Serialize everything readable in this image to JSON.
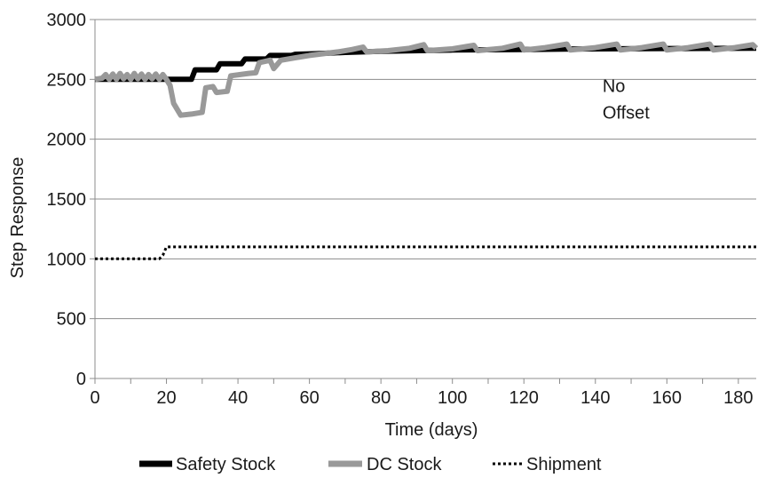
{
  "chart_data": {
    "type": "line",
    "title": "",
    "xlabel": "Time (days)",
    "ylabel": "Step Response",
    "xlim": [
      0,
      185
    ],
    "ylim": [
      0,
      3000
    ],
    "x_ticks": [
      0,
      20,
      40,
      60,
      80,
      100,
      120,
      140,
      160,
      180
    ],
    "y_ticks": [
      0,
      500,
      1000,
      1500,
      2000,
      2500,
      3000
    ],
    "grid": "horizontal",
    "legend_position": "bottom",
    "annotations": [
      {
        "text_lines": [
          "No",
          "Offset"
        ],
        "x": 142,
        "y": 2500
      }
    ],
    "series": [
      {
        "name": "Safety Stock",
        "color": "#000000",
        "style": "solid-thick",
        "points": [
          [
            0,
            2500
          ],
          [
            20,
            2500
          ],
          [
            22,
            2500
          ],
          [
            27,
            2500
          ],
          [
            28,
            2580
          ],
          [
            34,
            2580
          ],
          [
            35,
            2630
          ],
          [
            41,
            2630
          ],
          [
            42,
            2670
          ],
          [
            48,
            2670
          ],
          [
            49,
            2700
          ],
          [
            55,
            2700
          ],
          [
            56,
            2710
          ],
          [
            62,
            2715
          ],
          [
            70,
            2725
          ],
          [
            80,
            2735
          ],
          [
            100,
            2745
          ],
          [
            120,
            2750
          ],
          [
            140,
            2755
          ],
          [
            160,
            2758
          ],
          [
            185,
            2760
          ]
        ]
      },
      {
        "name": "DC Stock",
        "color": "#999999",
        "style": "solid-thick",
        "points": [
          [
            0,
            2500
          ],
          [
            2,
            2510
          ],
          [
            3,
            2540
          ],
          [
            4,
            2500
          ],
          [
            5,
            2545
          ],
          [
            6,
            2500
          ],
          [
            7,
            2550
          ],
          [
            8,
            2505
          ],
          [
            9,
            2540
          ],
          [
            10,
            2500
          ],
          [
            11,
            2550
          ],
          [
            12,
            2505
          ],
          [
            13,
            2545
          ],
          [
            14,
            2500
          ],
          [
            15,
            2540
          ],
          [
            16,
            2505
          ],
          [
            17,
            2545
          ],
          [
            18,
            2500
          ],
          [
            19,
            2540
          ],
          [
            20,
            2500
          ],
          [
            21,
            2450
          ],
          [
            22,
            2300
          ],
          [
            24,
            2200
          ],
          [
            27,
            2210
          ],
          [
            30,
            2225
          ],
          [
            31,
            2430
          ],
          [
            33,
            2440
          ],
          [
            34,
            2390
          ],
          [
            37,
            2400
          ],
          [
            38,
            2530
          ],
          [
            43,
            2550
          ],
          [
            45,
            2555
          ],
          [
            46,
            2640
          ],
          [
            49,
            2660
          ],
          [
            50,
            2590
          ],
          [
            52,
            2660
          ],
          [
            56,
            2680
          ],
          [
            60,
            2700
          ],
          [
            64,
            2715
          ],
          [
            68,
            2730
          ],
          [
            72,
            2750
          ],
          [
            75,
            2770
          ],
          [
            76,
            2730
          ],
          [
            82,
            2740
          ],
          [
            88,
            2760
          ],
          [
            92,
            2790
          ],
          [
            93,
            2740
          ],
          [
            100,
            2755
          ],
          [
            106,
            2785
          ],
          [
            107,
            2740
          ],
          [
            114,
            2760
          ],
          [
            119,
            2795
          ],
          [
            120,
            2745
          ],
          [
            126,
            2765
          ],
          [
            132,
            2795
          ],
          [
            133,
            2745
          ],
          [
            140,
            2765
          ],
          [
            146,
            2795
          ],
          [
            147,
            2745
          ],
          [
            153,
            2765
          ],
          [
            159,
            2795
          ],
          [
            160,
            2745
          ],
          [
            166,
            2765
          ],
          [
            172,
            2795
          ],
          [
            173,
            2745
          ],
          [
            179,
            2765
          ],
          [
            184,
            2790
          ],
          [
            185,
            2760
          ]
        ]
      },
      {
        "name": "Shipment",
        "color": "#000000",
        "style": "dotted",
        "points": [
          [
            0,
            1000
          ],
          [
            18,
            1000
          ],
          [
            19,
            1030
          ],
          [
            20,
            1100
          ],
          [
            185,
            1100
          ]
        ]
      }
    ]
  }
}
